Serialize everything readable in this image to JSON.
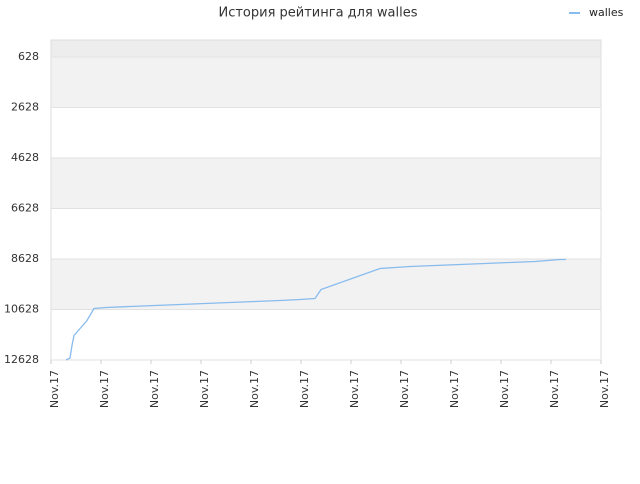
{
  "chart_data": {
    "type": "line",
    "title": "История рейтинга для walles",
    "x": [
      0.3,
      0.38,
      0.42,
      0.46,
      0.72,
      0.86,
      1.1,
      1.58,
      2.08,
      2.58,
      3.08,
      3.58,
      4.08,
      4.58,
      4.98,
      5.28,
      5.4,
      6.58,
      6.88,
      7.18,
      7.68,
      8.18,
      8.68,
      9.18,
      9.68,
      10.18,
      10.3
    ],
    "series": [
      {
        "name": "walles",
        "color": "#88bbee",
        "values": [
          12628,
          12550,
          12050,
          11658,
          11064,
          10588,
          10548,
          10509,
          10469,
          10430,
          10390,
          10350,
          10311,
          10271,
          10232,
          10192,
          9836,
          9004,
          8964,
          8925,
          8885,
          8846,
          8806,
          8766,
          8727,
          8648,
          8648
        ]
      }
    ],
    "xlim": [
      0,
      11
    ],
    "xticks": [
      {
        "value": 0,
        "label": "Nov.17"
      },
      {
        "value": 1,
        "label": "Nov.17"
      },
      {
        "value": 2,
        "label": "Nov.17"
      },
      {
        "value": 3,
        "label": "Nov.17"
      },
      {
        "value": 4,
        "label": "Nov.17"
      },
      {
        "value": 5,
        "label": "Nov.17"
      },
      {
        "value": 6,
        "label": "Nov.17"
      },
      {
        "value": 7,
        "label": "Nov.17"
      },
      {
        "value": 8,
        "label": "Nov.17"
      },
      {
        "value": 9,
        "label": "Nov.17"
      },
      {
        "value": 10,
        "label": "Nov.17"
      },
      {
        "value": 11,
        "label": "Nov.17"
      }
    ],
    "ylim": [
      12628,
      -45
    ],
    "yticks": [
      628,
      2628,
      4628,
      6628,
      8628,
      10628,
      12628
    ],
    "bands": true,
    "legend": "top-right"
  }
}
